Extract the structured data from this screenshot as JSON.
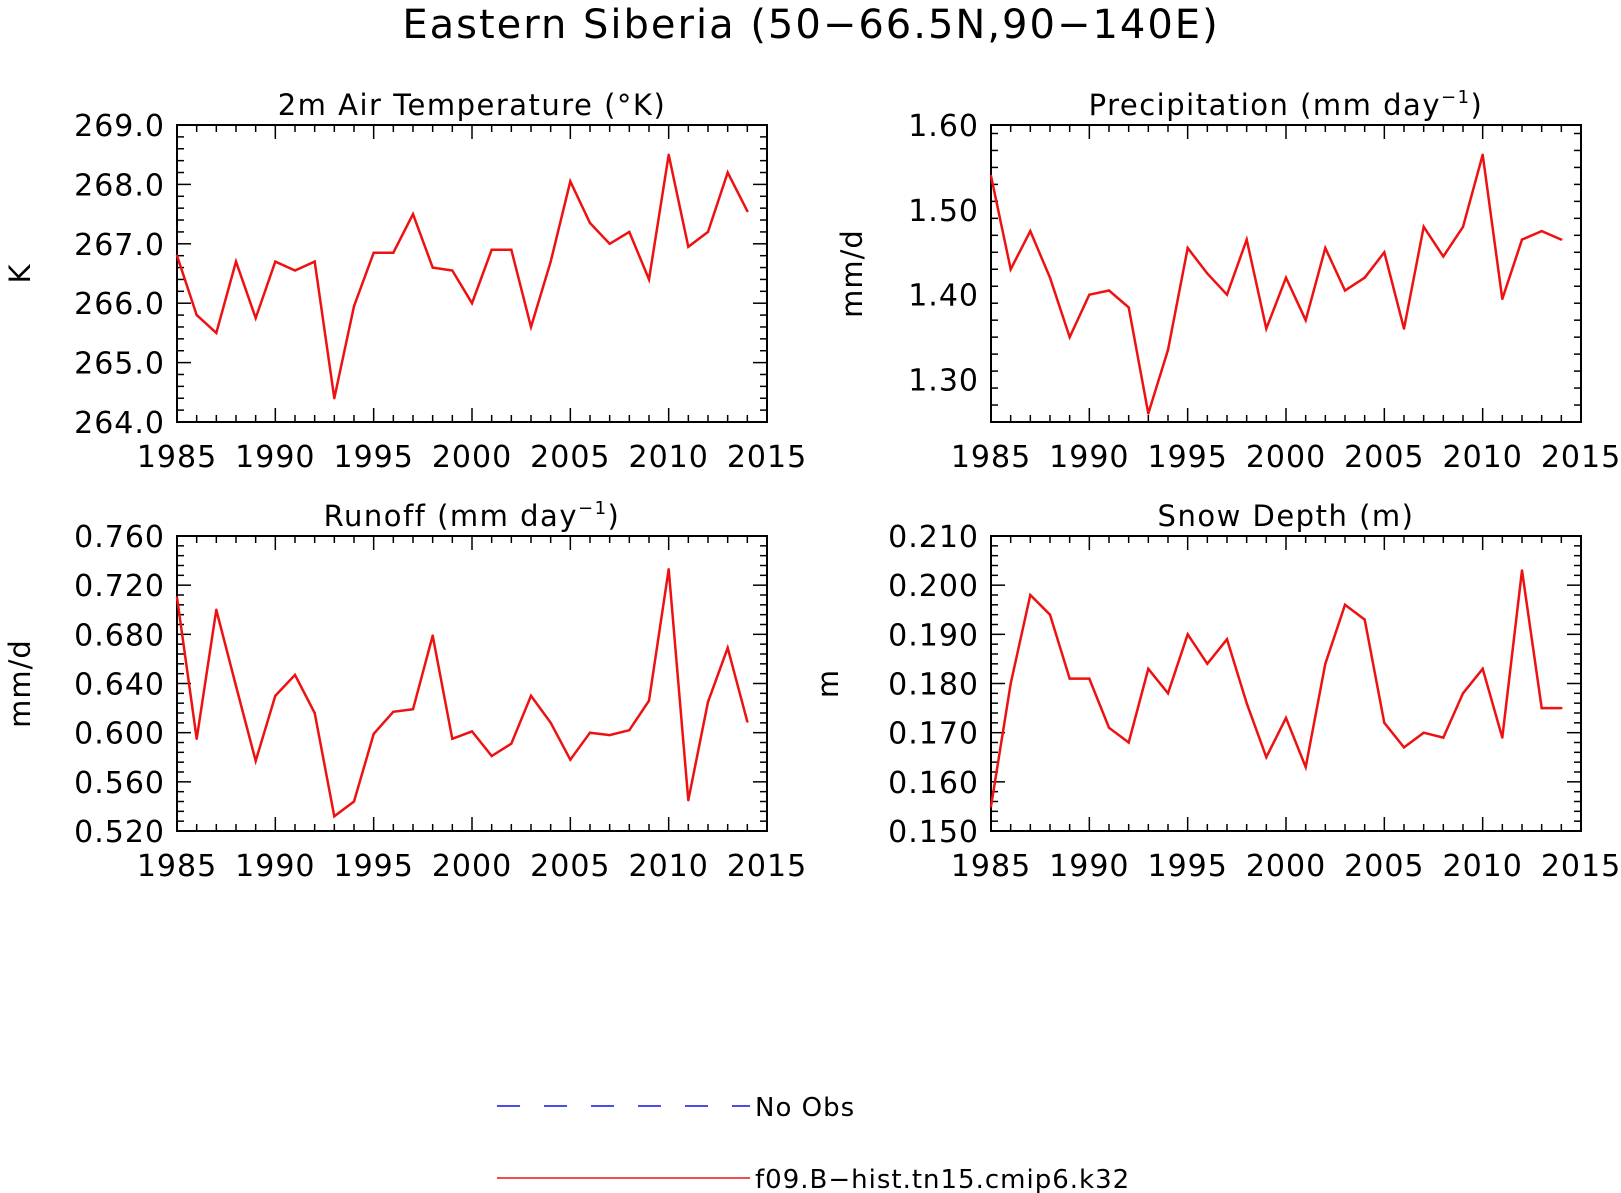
{
  "figure": {
    "title": "Eastern Siberia (50−66.5N,90−140E)"
  },
  "legend": [
    {
      "label": "No Obs",
      "color": "#1010e0",
      "style": "dashed"
    },
    {
      "label": "f09.B−hist.tn15.cmip6.k32",
      "color": "#ee1111",
      "style": "solid"
    }
  ],
  "colors": {
    "model_line": "#ee1111",
    "obs_line": "#1010e0",
    "axes": "#000000"
  },
  "chart_data": [
    {
      "id": "temp",
      "type": "line",
      "title_parts": [
        {
          "text": "2m Air Temperature (°K)"
        }
      ],
      "ylabel": "K",
      "xlim": [
        1985,
        2015
      ],
      "ylim": [
        264.0,
        269.0
      ],
      "xticks": [
        1985,
        1990,
        1995,
        2000,
        2005,
        2010,
        2015
      ],
      "yticks": [
        "264.0",
        "265.0",
        "266.0",
        "267.0",
        "268.0",
        "269.0"
      ],
      "x": [
        1985,
        1986,
        1987,
        1988,
        1989,
        1990,
        1991,
        1992,
        1993,
        1994,
        1995,
        1996,
        1997,
        1998,
        1999,
        2000,
        2001,
        2002,
        2003,
        2004,
        2005,
        2006,
        2007,
        2008,
        2009,
        2010,
        2011,
        2012,
        2013,
        2014
      ],
      "series": [
        {
          "name": "f09.B−hist.tn15.cmip6.k32",
          "values": [
            266.8,
            265.8,
            265.5,
            266.7,
            265.75,
            266.7,
            266.55,
            266.7,
            264.4,
            265.95,
            266.85,
            266.85,
            267.5,
            266.6,
            266.55,
            266.0,
            266.9,
            266.9,
            265.6,
            266.7,
            268.05,
            267.35,
            267.0,
            267.2,
            266.4,
            268.5,
            266.95,
            267.2,
            268.2,
            267.55
          ]
        }
      ]
    },
    {
      "id": "precip",
      "type": "line",
      "title_parts": [
        {
          "text": "Precipitation (mm day"
        },
        {
          "text": "−1",
          "sup": true
        },
        {
          "text": ")"
        }
      ],
      "ylabel": "mm/d",
      "xlim": [
        1985,
        2015
      ],
      "ylim": [
        1.25,
        1.6
      ],
      "xticks": [
        1985,
        1990,
        1995,
        2000,
        2005,
        2010,
        2015
      ],
      "yticks": [
        "1.30",
        "1.40",
        "1.50",
        "1.60"
      ],
      "x": [
        1985,
        1986,
        1987,
        1988,
        1989,
        1990,
        1991,
        1992,
        1993,
        1994,
        1995,
        1996,
        1997,
        1998,
        1999,
        2000,
        2001,
        2002,
        2003,
        2004,
        2005,
        2006,
        2007,
        2008,
        2009,
        2010,
        2011,
        2012,
        2013,
        2014
      ],
      "series": [
        {
          "name": "f09.B−hist.tn15.cmip6.k32",
          "values": [
            1.54,
            1.43,
            1.475,
            1.42,
            1.35,
            1.4,
            1.405,
            1.385,
            1.26,
            1.335,
            1.455,
            1.425,
            1.4,
            1.465,
            1.36,
            1.42,
            1.37,
            1.455,
            1.405,
            1.42,
            1.45,
            1.36,
            1.48,
            1.445,
            1.48,
            1.565,
            1.395,
            1.465,
            1.475,
            1.465
          ]
        }
      ]
    },
    {
      "id": "runoff",
      "type": "line",
      "title_parts": [
        {
          "text": "Runoff (mm day"
        },
        {
          "text": "−1",
          "sup": true
        },
        {
          "text": ")"
        }
      ],
      "ylabel": "mm/d",
      "xlim": [
        1985,
        2015
      ],
      "ylim": [
        0.52,
        0.76
      ],
      "xticks": [
        1985,
        1990,
        1995,
        2000,
        2005,
        2010,
        2015
      ],
      "yticks": [
        "0.520",
        "0.560",
        "0.600",
        "0.640",
        "0.680",
        "0.720",
        "0.760"
      ],
      "x": [
        1985,
        1986,
        1987,
        1988,
        1989,
        1990,
        1991,
        1992,
        1993,
        1994,
        1995,
        1996,
        1997,
        1998,
        1999,
        2000,
        2001,
        2002,
        2003,
        2004,
        2005,
        2006,
        2007,
        2008,
        2009,
        2010,
        2011,
        2012,
        2013,
        2014
      ],
      "series": [
        {
          "name": "f09.B−hist.tn15.cmip6.k32",
          "values": [
            0.71,
            0.595,
            0.7,
            0.638,
            0.577,
            0.63,
            0.647,
            0.616,
            0.532,
            0.544,
            0.599,
            0.617,
            0.619,
            0.679,
            0.595,
            0.601,
            0.581,
            0.591,
            0.63,
            0.608,
            0.578,
            0.6,
            0.598,
            0.602,
            0.626,
            0.733,
            0.545,
            0.625,
            0.669,
            0.609
          ]
        }
      ]
    },
    {
      "id": "snow",
      "type": "line",
      "title_parts": [
        {
          "text": "Snow Depth (m)"
        }
      ],
      "ylabel": "m",
      "xlim": [
        1985,
        2015
      ],
      "ylim": [
        0.15,
        0.21
      ],
      "xticks": [
        1985,
        1990,
        1995,
        2000,
        2005,
        2010,
        2015
      ],
      "yticks": [
        "0.150",
        "0.160",
        "0.170",
        "0.180",
        "0.190",
        "0.200",
        "0.210"
      ],
      "x": [
        1985,
        1986,
        1987,
        1988,
        1989,
        1990,
        1991,
        1992,
        1993,
        1994,
        1995,
        1996,
        1997,
        1998,
        1999,
        2000,
        2001,
        2002,
        2003,
        2004,
        2005,
        2006,
        2007,
        2008,
        2009,
        2010,
        2011,
        2012,
        2013,
        2014
      ],
      "series": [
        {
          "name": "f09.B−hist.tn15.cmip6.k32",
          "values": [
            0.155,
            0.18,
            0.198,
            0.194,
            0.181,
            0.181,
            0.171,
            0.168,
            0.183,
            0.178,
            0.19,
            0.184,
            0.189,
            0.176,
            0.165,
            0.173,
            0.163,
            0.184,
            0.196,
            0.193,
            0.172,
            0.167,
            0.17,
            0.169,
            0.178,
            0.183,
            0.169,
            0.203,
            0.175,
            0.175
          ]
        }
      ]
    }
  ]
}
